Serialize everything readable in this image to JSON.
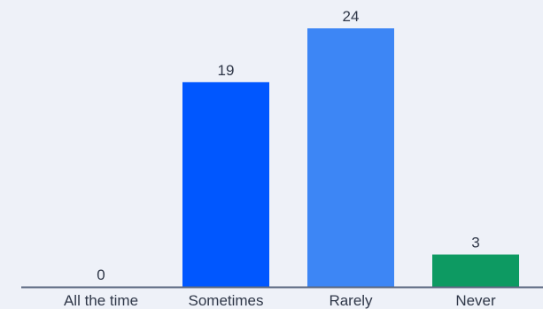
{
  "chart_data": {
    "type": "bar",
    "categories": [
      "All the time",
      "Sometimes",
      "Rarely",
      "Never"
    ],
    "values": [
      0,
      19,
      24,
      3
    ],
    "data_labels": [
      "0",
      "19",
      "24",
      "3"
    ],
    "ylim": [
      0,
      24
    ],
    "grid": false,
    "colors": [
      "#0057ff",
      "#0057ff",
      "#3d86f5",
      "#0d9a62"
    ],
    "axis_color": "#5a6780",
    "text_color": "#2f3748"
  }
}
